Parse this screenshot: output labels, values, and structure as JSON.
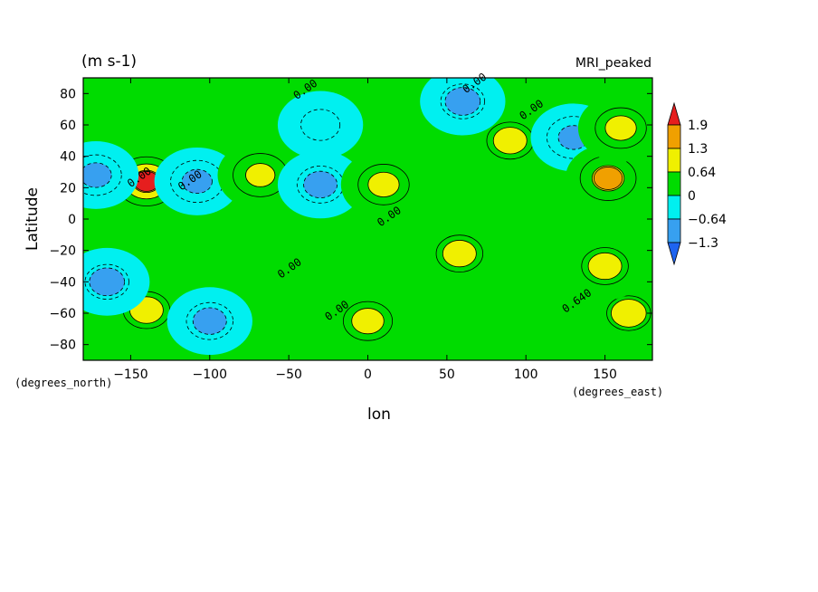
{
  "chart_data": {
    "type": "heatmap",
    "title_left": "(m s-1)",
    "title_right": "MRI_peaked",
    "xlabel": "lon",
    "ylabel": "Latitude",
    "x_units": "(degrees_east)",
    "y_units": "(degrees_north)",
    "xlim": [
      -180,
      180
    ],
    "ylim": [
      -90,
      90
    ],
    "x_ticks": [
      -150,
      -100,
      -50,
      0,
      50,
      100,
      150
    ],
    "x_tick_labels": [
      "−150",
      "−100",
      "−50",
      "0",
      "50",
      "100",
      "150"
    ],
    "y_ticks": [
      80,
      60,
      40,
      20,
      0,
      -20,
      -40,
      -60,
      -80
    ],
    "y_tick_labels": [
      "80",
      "60",
      "40",
      "20",
      "0",
      "−20",
      "−40",
      "−60",
      "−80"
    ],
    "colorbar": {
      "levels": [
        -1.3,
        -0.64,
        0,
        0.64,
        1.3,
        1.9
      ],
      "level_labels": [
        "−1.3",
        "−0.64",
        "0",
        "0.64",
        "1.3",
        "1.9"
      ],
      "colors": [
        "#1E64F0",
        "#37A0F0",
        "#00F0F0",
        "#00DC00",
        "#F0F000",
        "#F0A000",
        "#E61E1E"
      ]
    },
    "contour_labels": [
      "0.00",
      "0.00",
      "0.00",
      "0.00",
      "0.00",
      "0.00",
      "0.00",
      "0.00",
      "0.640"
    ],
    "features": [
      {
        "lon": -140,
        "lat": 24,
        "value": 2.0
      },
      {
        "lon": -172,
        "lat": 28,
        "value": -1.1
      },
      {
        "lon": -108,
        "lat": 24,
        "value": -1.2
      },
      {
        "lon": -68,
        "lat": 28,
        "value": 1.3
      },
      {
        "lon": -30,
        "lat": 22,
        "value": -0.9
      },
      {
        "lon": 10,
        "lat": 22,
        "value": 1.1
      },
      {
        "lon": 58,
        "lat": -22,
        "value": 0.9
      },
      {
        "lon": 90,
        "lat": 50,
        "value": 0.9
      },
      {
        "lon": 130,
        "lat": 52,
        "value": -1.2
      },
      {
        "lon": 152,
        "lat": 26,
        "value": 1.4
      },
      {
        "lon": 160,
        "lat": 58,
        "value": 1.1
      },
      {
        "lon": 0,
        "lat": -65,
        "value": 1.0
      },
      {
        "lon": -140,
        "lat": -58,
        "value": 0.9
      },
      {
        "lon": -100,
        "lat": -65,
        "value": -0.9
      },
      {
        "lon": -165,
        "lat": -40,
        "value": -0.8
      },
      {
        "lon": 165,
        "lat": -60,
        "value": 0.8
      },
      {
        "lon": 150,
        "lat": -30,
        "value": 0.9
      },
      {
        "lon": 60,
        "lat": 75,
        "value": -0.8
      },
      {
        "lon": -30,
        "lat": 60,
        "value": -0.6
      }
    ]
  }
}
